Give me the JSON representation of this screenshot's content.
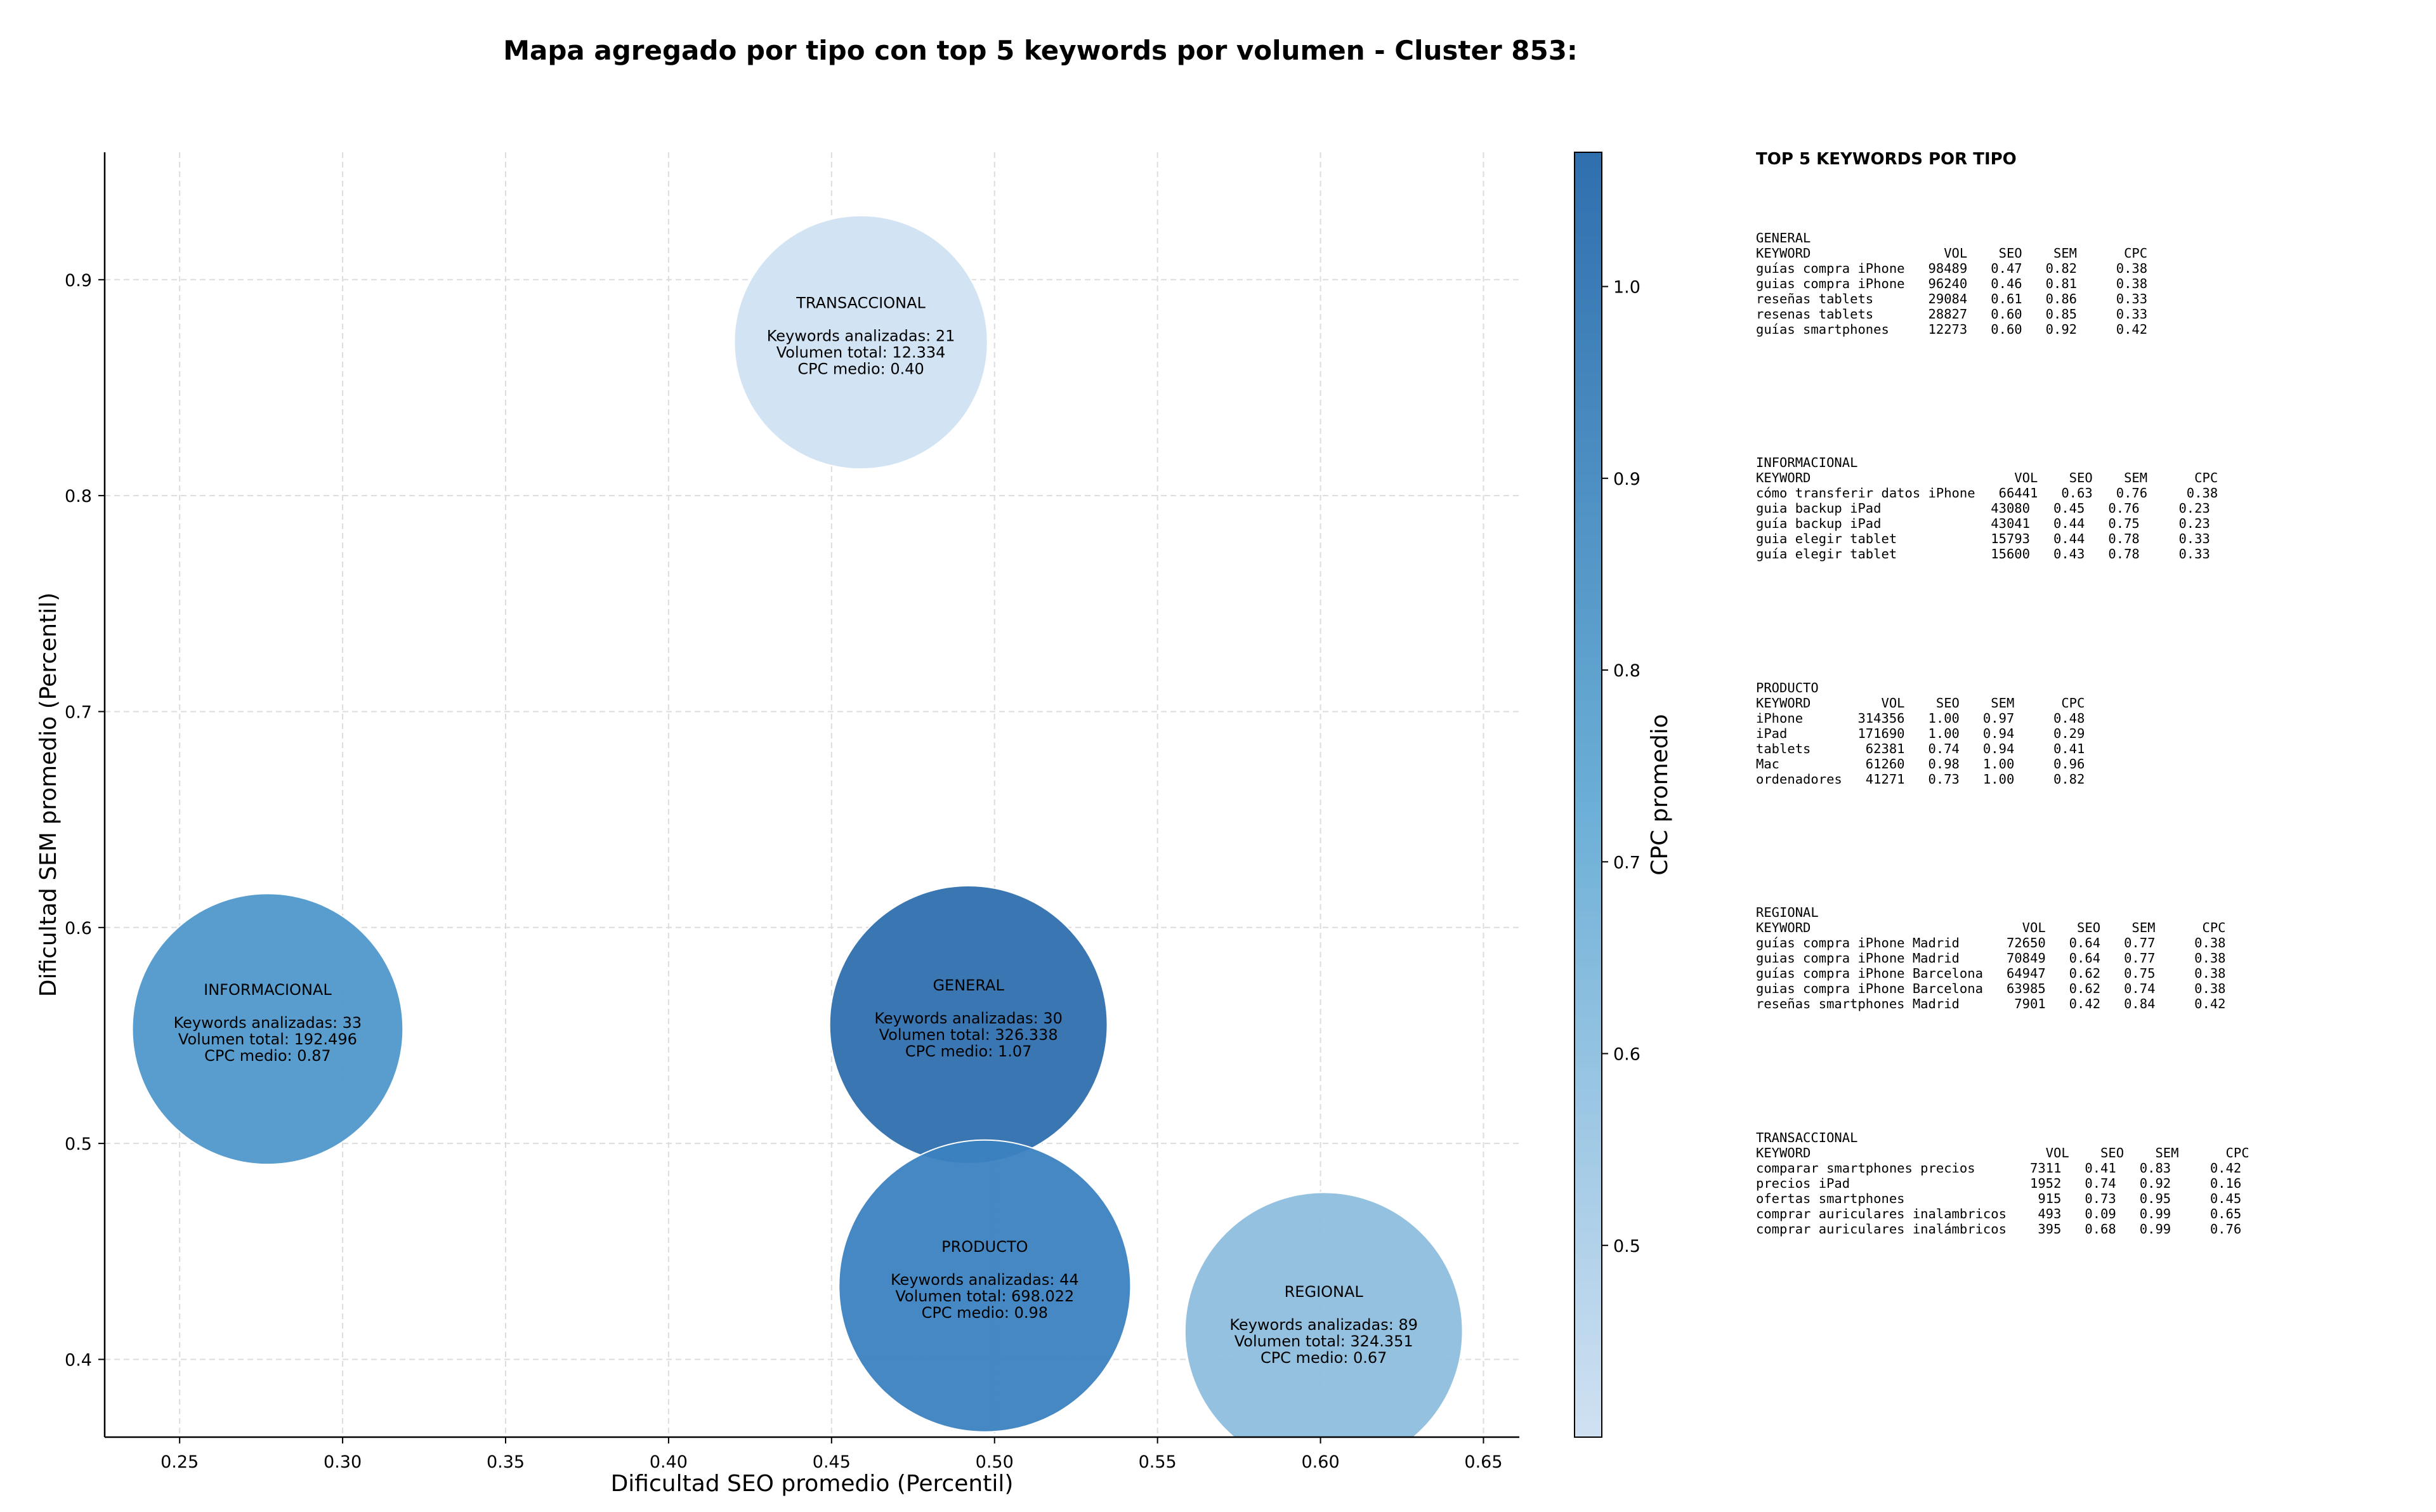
{
  "chart_data": {
    "type": "scatter",
    "title": "Mapa agregado por tipo con top 5 keywords por volumen - Cluster 853:",
    "xlabel": "Dificultad SEO promedio (Percentil)",
    "ylabel": "Dificultad SEM promedio (Percentil)",
    "xlim": [
      0.227,
      0.661
    ],
    "ylim": [
      0.364,
      0.959
    ],
    "xticks": [
      "0.25",
      "0.30",
      "0.35",
      "0.40",
      "0.45",
      "0.50",
      "0.55",
      "0.60",
      "0.65"
    ],
    "yticks": [
      "0.4",
      "0.5",
      "0.6",
      "0.7",
      "0.8",
      "0.9"
    ],
    "grid": true,
    "colorbar": {
      "label": "CPC promedio",
      "range": [
        0.4,
        1.07
      ],
      "ticks": [
        "0.5",
        "0.6",
        "0.7",
        "0.8",
        "0.9",
        "1.0"
      ],
      "color_low": "#d0e1f2",
      "color_high": "#2f6fae"
    },
    "bubbles": [
      {
        "name": "TRANSACCIONAL",
        "x": 0.459,
        "y": 0.871,
        "keywords_label": "Keywords analizadas: 21",
        "volume_label": "Volumen total: 12.334",
        "cpc_label": "CPC medio: 0.40",
        "cpc": 0.4,
        "volume": 12334,
        "color": "#d0e1f2"
      },
      {
        "name": "INFORMACIONAL",
        "x": 0.277,
        "y": 0.553,
        "keywords_label": "Keywords analizadas: 33",
        "volume_label": "Volumen total: 192.496",
        "cpc_label": "CPC medio: 0.87",
        "cpc": 0.87,
        "volume": 192496,
        "color": "#4f98cb"
      },
      {
        "name": "GENERAL",
        "x": 0.492,
        "y": 0.555,
        "keywords_label": "Keywords analizadas: 30",
        "volume_label": "Volumen total: 326.338",
        "cpc_label": "CPC medio: 1.07",
        "cpc": 1.07,
        "volume": 326338,
        "color": "#2f6fae"
      },
      {
        "name": "PRODUCTO",
        "x": 0.497,
        "y": 0.434,
        "keywords_label": "Keywords analizadas: 44",
        "volume_label": "Volumen total: 698.022",
        "cpc_label": "CPC medio: 0.98",
        "cpc": 0.98,
        "volume": 698022,
        "color": "#3b82c0"
      },
      {
        "name": "REGIONAL",
        "x": 0.601,
        "y": 0.413,
        "keywords_label": "Keywords analizadas: 89",
        "volume_label": "Volumen total: 324.351",
        "cpc_label": "CPC medio: 0.67",
        "cpc": 0.67,
        "volume": 324351,
        "color": "#8dbedd"
      }
    ]
  },
  "side_panel": {
    "heading": "TOP 5 KEYWORDS POR TIPO",
    "blocks": [
      {
        "name": "GENERAL",
        "lines": [
          "GENERAL",
          "KEYWORD                 VOL    SEO    SEM      CPC",
          "guías compra iPhone   98489   0.47   0.82     0.38",
          "guias compra iPhone   96240   0.46   0.81     0.38",
          "reseñas tablets       29084   0.61   0.86     0.33",
          "resenas tablets       28827   0.60   0.85     0.33",
          "guías smartphones     12273   0.60   0.92     0.42"
        ]
      },
      {
        "name": "INFORMACIONAL",
        "lines": [
          "INFORMACIONAL",
          "KEYWORD                          VOL    SEO    SEM      CPC",
          "cómo transferir datos iPhone   66441   0.63   0.76     0.38",
          "guia backup iPad              43080   0.45   0.76     0.23",
          "guía backup iPad              43041   0.44   0.75     0.23",
          "guia elegir tablet            15793   0.44   0.78     0.33",
          "guía elegir tablet            15600   0.43   0.78     0.33"
        ]
      },
      {
        "name": "PRODUCTO",
        "lines": [
          "PRODUCTO",
          "KEYWORD         VOL    SEO    SEM      CPC",
          "iPhone       314356   1.00   0.97     0.48",
          "iPad         171690   1.00   0.94     0.29",
          "tablets       62381   0.74   0.94     0.41",
          "Mac           61260   0.98   1.00     0.96",
          "ordenadores   41271   0.73   1.00     0.82"
        ]
      },
      {
        "name": "REGIONAL",
        "lines": [
          "REGIONAL",
          "KEYWORD                           VOL    SEO    SEM      CPC",
          "guías compra iPhone Madrid      72650   0.64   0.77     0.38",
          "guias compra iPhone Madrid      70849   0.64   0.77     0.38",
          "guías compra iPhone Barcelona   64947   0.62   0.75     0.38",
          "guias compra iPhone Barcelona   63985   0.62   0.74     0.38",
          "reseñas smartphones Madrid       7901   0.42   0.84     0.42"
        ]
      },
      {
        "name": "TRANSACCIONAL",
        "lines": [
          "TRANSACCIONAL",
          "KEYWORD                              VOL    SEO    SEM      CPC",
          "comparar smartphones precios       7311   0.41   0.83     0.42",
          "precios iPad                       1952   0.74   0.92     0.16",
          "ofertas smartphones                 915   0.73   0.95     0.45",
          "comprar auriculares inalambricos    493   0.09   0.99     0.65",
          "comprar auriculares inalámbricos    395   0.68   0.99     0.76"
        ]
      }
    ]
  }
}
